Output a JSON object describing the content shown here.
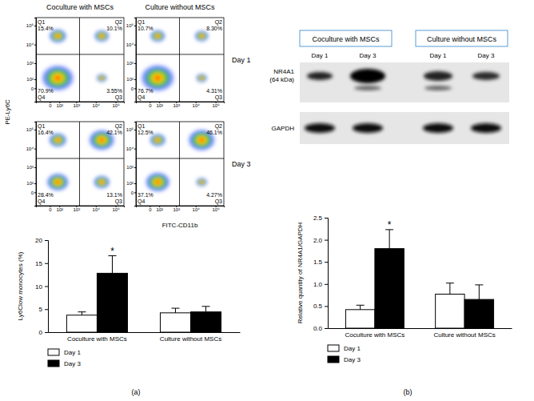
{
  "figure": {
    "panel_a": "(a)",
    "panel_b": "(b)",
    "flow_columns": [
      "Coculture with MSCs",
      "Culture without MSCs"
    ],
    "flow_rows": [
      "Day 1",
      "Day 3"
    ],
    "flow_x_label": "FITC-CD11b",
    "flow_y_label": "PE-Ly6C",
    "blot_columns": [
      "Coculture with MSCs",
      "Culture without MSCs"
    ],
    "blot_lanes": [
      "Day 1",
      "Day 3",
      "Day 1",
      "Day 3"
    ],
    "blot_rows": [
      [
        "NR4A1",
        "(64 kDa)"
      ],
      [
        "GAPDH"
      ]
    ]
  },
  "chart_data": [
    {
      "type": "flow_cytometry",
      "log": true,
      "xlim": [
        -200,
        262144
      ],
      "ylim": [
        -200,
        262144
      ],
      "gate_x": 1500,
      "gate_y": 3000,
      "xticks": [
        0,
        {
          "value": 100,
          "label": "10²"
        },
        {
          "value": 1000,
          "label": "10³"
        },
        {
          "value": 10000,
          "label": "10⁴"
        },
        {
          "value": 100000,
          "label": "10⁵"
        }
      ],
      "yticks": [
        0,
        {
          "value": 100,
          "label": "10²"
        },
        {
          "value": 1000,
          "label": "10³"
        },
        {
          "value": 10000,
          "label": "10⁴"
        },
        {
          "value": 100000,
          "label": "10⁵"
        }
      ],
      "quadrants": [
        {
          "name": "Q1",
          "value": 15.4,
          "label": "15.4%"
        },
        {
          "name": "Q2",
          "value": 10.1,
          "label": "10.1%"
        },
        {
          "name": "Q3",
          "value": 3.55,
          "label": "3.55%"
        },
        {
          "name": "Q4",
          "value": 70.9,
          "label": "70.9%"
        }
      ]
    },
    {
      "type": "flow_cytometry",
      "log": true,
      "xlim": [
        -200,
        262144
      ],
      "ylim": [
        -200,
        262144
      ],
      "gate_x": 1500,
      "gate_y": 3000,
      "xticks": [
        0,
        {
          "value": 100,
          "label": "10²"
        },
        {
          "value": 1000,
          "label": "10³"
        },
        {
          "value": 10000,
          "label": "10⁴"
        },
        {
          "value": 100000,
          "label": "10⁵"
        }
      ],
      "yticks": [
        0,
        {
          "value": 100,
          "label": "10²"
        },
        {
          "value": 1000,
          "label": "10³"
        },
        {
          "value": 10000,
          "label": "10⁴"
        },
        {
          "value": 100000,
          "label": "10⁵"
        }
      ],
      "quadrants": [
        {
          "name": "Q1",
          "value": 10.7,
          "label": "10.7%"
        },
        {
          "name": "Q2",
          "value": 8.3,
          "label": "8.30%"
        },
        {
          "name": "Q3",
          "value": 4.31,
          "label": "4.31%"
        },
        {
          "name": "Q4",
          "value": 76.7,
          "label": "76.7%"
        }
      ]
    },
    {
      "type": "flow_cytometry",
      "log": true,
      "xlim": [
        -200,
        262144
      ],
      "ylim": [
        -200,
        262144
      ],
      "gate_x": 1500,
      "gate_y": 3000,
      "xticks": [
        0,
        {
          "value": 100,
          "label": "10²"
        },
        {
          "value": 1000,
          "label": "10³"
        },
        {
          "value": 10000,
          "label": "10⁴"
        },
        {
          "value": 100000,
          "label": "10⁵"
        }
      ],
      "yticks": [
        0,
        {
          "value": 100,
          "label": "10²"
        },
        {
          "value": 1000,
          "label": "10³"
        },
        {
          "value": 10000,
          "label": "10⁴"
        },
        {
          "value": 100000,
          "label": "10⁵"
        }
      ],
      "quadrants": [
        {
          "name": "Q1",
          "value": 16.4,
          "label": "16.4%"
        },
        {
          "name": "Q2",
          "value": 42.1,
          "label": "42.1%"
        },
        {
          "name": "Q3",
          "value": 13.1,
          "label": "13.1%"
        },
        {
          "name": "Q4",
          "value": 28.4,
          "label": "28.4%"
        }
      ]
    },
    {
      "type": "flow_cytometry",
      "log": true,
      "xlim": [
        -200,
        262144
      ],
      "ylim": [
        -200,
        262144
      ],
      "gate_x": 1500,
      "gate_y": 3000,
      "xticks": [
        0,
        {
          "value": 100,
          "label": "10²"
        },
        {
          "value": 1000,
          "label": "10³"
        },
        {
          "value": 10000,
          "label": "10⁴"
        },
        {
          "value": 100000,
          "label": "10⁵"
        }
      ],
      "yticks": [
        0,
        {
          "value": 100,
          "label": "10²"
        },
        {
          "value": 1000,
          "label": "10³"
        },
        {
          "value": 10000,
          "label": "10⁴"
        },
        {
          "value": 100000,
          "label": "10⁵"
        }
      ],
      "quadrants": [
        {
          "name": "Q1",
          "value": 12.5,
          "label": "12.5%"
        },
        {
          "name": "Q2",
          "value": 46.1,
          "label": "46.1%"
        },
        {
          "name": "Q3",
          "value": 4.27,
          "label": "4.27%"
        },
        {
          "name": "Q4",
          "value": 37.1,
          "label": "37.1%"
        }
      ]
    },
    {
      "type": "bar",
      "y_label": "Ly6Clow monocytes (%)",
      "categories": [
        "Coculture with MSCs",
        "Culture without MSCs"
      ],
      "series": [
        {
          "name": "Day 1",
          "color": "#ffffff",
          "values": [
            3.7,
            4.2
          ],
          "errors": [
            0.7,
            1.0
          ]
        },
        {
          "name": "Day 3",
          "color": "#000000",
          "values": [
            12.8,
            4.4
          ],
          "errors": [
            3.8,
            1.2
          ]
        }
      ],
      "ylim": [
        0,
        20
      ],
      "yticks": [
        0,
        5,
        10,
        15,
        20
      ],
      "legend": "bottom",
      "annotations": [
        {
          "text": "*",
          "category": 0,
          "series": 1
        }
      ]
    },
    {
      "type": "bar",
      "y_label": "Relative quantity of NR4A1/GAPDH",
      "categories": [
        "Coculture with MSCs",
        "Culture without MSCs"
      ],
      "series": [
        {
          "name": "Day 1",
          "color": "#ffffff",
          "values": [
            0.42,
            0.77
          ],
          "errors": [
            0.1,
            0.25
          ]
        },
        {
          "name": "Day 3",
          "color": "#000000",
          "values": [
            1.8,
            0.65
          ],
          "errors": [
            0.43,
            0.33
          ]
        }
      ],
      "ylim": [
        0,
        2.5
      ],
      "yticks": [
        {
          "value": 0,
          "label": "0.0"
        },
        0.5,
        {
          "value": 1,
          "label": "1.0"
        },
        1.5,
        {
          "value": 2,
          "label": "2.0"
        },
        2.5
      ],
      "legend": "bottom",
      "annotations": [
        {
          "text": "*",
          "category": 0,
          "series": 1
        }
      ]
    }
  ]
}
